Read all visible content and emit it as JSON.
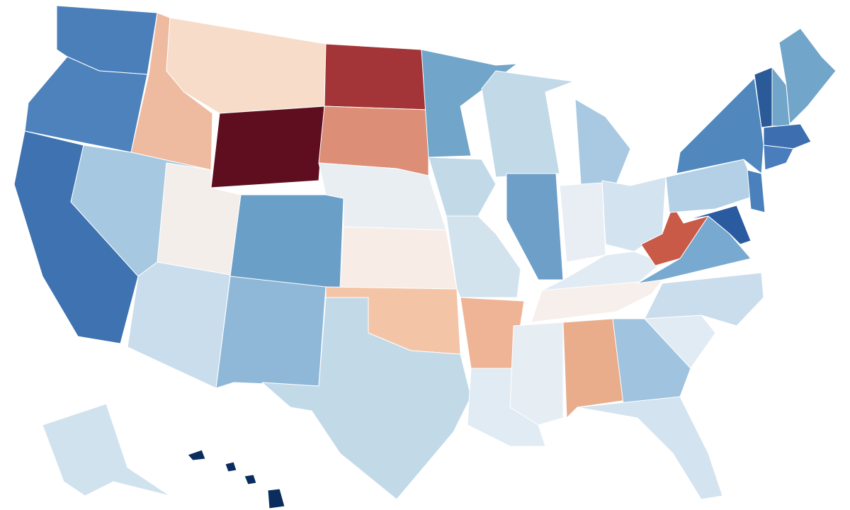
{
  "map": {
    "regions": [
      {
        "color": "#4a7fba"
      },
      {
        "color": "#4e82bc"
      },
      {
        "color": "#3f72b0"
      },
      {
        "color": "#efbba0"
      },
      {
        "color": "#f6dcc9"
      },
      {
        "color": "#5e0e1f"
      },
      {
        "color": "#a6c8e0"
      },
      {
        "color": "#f4eeeb"
      },
      {
        "color": "#c9dded"
      },
      {
        "color": "#6a9fc8"
      },
      {
        "color": "#8fb8d8"
      },
      {
        "color": "#a33538"
      },
      {
        "color": "#dc8e76"
      },
      {
        "color": "#e9eef2"
      },
      {
        "color": "#f7ece6"
      },
      {
        "color": "#f3c4a6"
      },
      {
        "color": "#c2d9e8"
      },
      {
        "color": "#72a5ca"
      },
      {
        "color": "#c2d9e8"
      },
      {
        "color": "#d3e3ee"
      },
      {
        "color": "#efb495"
      },
      {
        "color": "#e1ebf3"
      },
      {
        "color": "#c2d9e8"
      },
      {
        "color": "#6d9fc9"
      },
      {
        "color": "#a8c9e1"
      },
      {
        "color": "#e8eef4"
      },
      {
        "color": "#d3e3ef"
      },
      {
        "color": "#e1ebf3"
      },
      {
        "color": "#f7efeb"
      },
      {
        "color": "#e6eef4"
      },
      {
        "color": "#e9ad8c"
      },
      {
        "color": "#a0c3df"
      },
      {
        "color": "#d3e3ef"
      },
      {
        "color": "#e1ebf3"
      },
      {
        "color": "#c9dded"
      },
      {
        "color": "#78a9d0"
      },
      {
        "color": "#c95a48"
      },
      {
        "color": "#b3d0e6"
      },
      {
        "color": "#5088be"
      },
      {
        "color": "#4a80bb"
      },
      {
        "color": "#2a5aa0"
      },
      {
        "color": "#2b5a98"
      },
      {
        "color": "#72a5ca"
      },
      {
        "color": "#72a5ca"
      },
      {
        "color": "#3d6fb0"
      },
      {
        "color": "#4a7dbb"
      },
      {
        "color": "#d0e2ee"
      },
      {
        "color": "#0b2d5e"
      }
    ]
  }
}
